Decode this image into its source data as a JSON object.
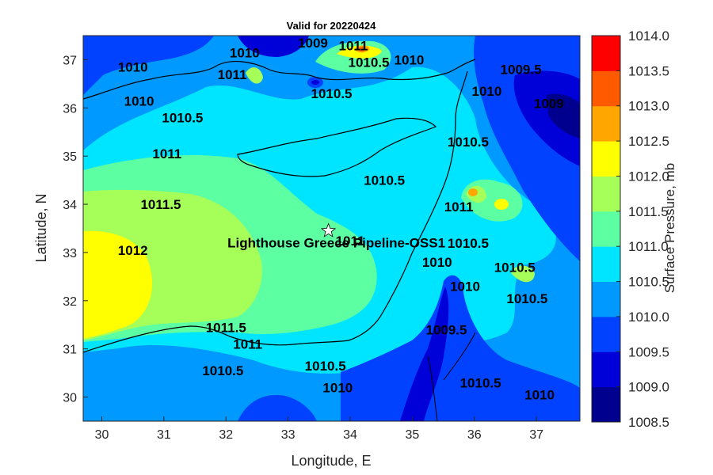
{
  "title": "Valid for 20220424",
  "xlabel": "Longitude, E",
  "ylabel": "Latitude, N",
  "colorbar_label": "Surface Pressure, mb",
  "site_label": "Lighthouse Greece Pipeline-OSS1",
  "colors": {
    "levels": [
      "#00008f",
      "#0000d8",
      "#0042ff",
      "#0099ff",
      "#00e5ff",
      "#5cffa2",
      "#a6ff59",
      "#ffff00",
      "#ffa600",
      "#ff5a00",
      "#ff0000"
    ]
  },
  "chart_data": {
    "type": "heatmap",
    "title": "Valid for 20220424",
    "xlabel": "Longitude, E",
    "ylabel": "Latitude, N",
    "xlim": [
      29.7,
      37.7
    ],
    "ylim": [
      29.5,
      37.5
    ],
    "xticks": [
      "30",
      "31",
      "32",
      "33",
      "34",
      "35",
      "36",
      "37"
    ],
    "yticks": [
      "30",
      "31",
      "32",
      "33",
      "34",
      "35",
      "36",
      "37"
    ],
    "colorbar": {
      "label": "Surface Pressure, mb",
      "range": [
        1008.5,
        1014.0
      ],
      "ticks": [
        "1014.0",
        "1013.5",
        "1013.0",
        "1012.5",
        "1012.0",
        "1011.5",
        "1011.0",
        "1010.5",
        "1010.0",
        "1009.5",
        "1009.0",
        "1008.5"
      ]
    },
    "contour_labels": [
      {
        "text": "1009",
        "lon": 33.4,
        "lat": 37.25
      },
      {
        "text": "1010",
        "lon": 32.3,
        "lat": 37.05
      },
      {
        "text": "1011",
        "lon": 32.1,
        "lat": 36.6
      },
      {
        "text": "1011",
        "lon": 34.05,
        "lat": 37.2
      },
      {
        "text": "1010.5",
        "lon": 34.3,
        "lat": 36.85
      },
      {
        "text": "1010",
        "lon": 34.95,
        "lat": 36.9
      },
      {
        "text": "1010.5",
        "lon": 33.7,
        "lat": 36.2
      },
      {
        "text": "1010",
        "lon": 30.5,
        "lat": 36.75
      },
      {
        "text": "1010",
        "lon": 30.6,
        "lat": 36.05
      },
      {
        "text": "1010.5",
        "lon": 31.3,
        "lat": 35.7
      },
      {
        "text": "1011",
        "lon": 31.05,
        "lat": 34.95
      },
      {
        "text": "1011.5",
        "lon": 30.95,
        "lat": 33.9
      },
      {
        "text": "1012",
        "lon": 30.5,
        "lat": 32.95
      },
      {
        "text": "1010.5",
        "lon": 34.55,
        "lat": 34.4
      },
      {
        "text": "1011",
        "lon": 34.0,
        "lat": 33.15
      },
      {
        "text": "1010.5",
        "lon": 35.9,
        "lat": 35.2
      },
      {
        "text": "1010",
        "lon": 36.2,
        "lat": 36.25
      },
      {
        "text": "1009.5",
        "lon": 36.75,
        "lat": 36.7
      },
      {
        "text": "1009",
        "lon": 37.2,
        "lat": 36.0
      },
      {
        "text": "1011",
        "lon": 35.75,
        "lat": 33.85
      },
      {
        "text": "1010.5",
        "lon": 35.9,
        "lat": 33.1
      },
      {
        "text": "1010",
        "lon": 35.4,
        "lat": 32.7
      },
      {
        "text": "1010",
        "lon": 35.85,
        "lat": 32.2
      },
      {
        "text": "1010.5",
        "lon": 36.65,
        "lat": 32.6
      },
      {
        "text": "1010.5",
        "lon": 36.85,
        "lat": 31.95
      },
      {
        "text": "1009.5",
        "lon": 35.55,
        "lat": 31.3
      },
      {
        "text": "1010.5",
        "lon": 36.1,
        "lat": 30.2
      },
      {
        "text": "1010",
        "lon": 37.05,
        "lat": 29.95
      },
      {
        "text": "1010.5",
        "lon": 33.6,
        "lat": 30.55
      },
      {
        "text": "1010",
        "lon": 33.8,
        "lat": 30.1
      },
      {
        "text": "1011.5",
        "lon": 32.0,
        "lat": 31.35
      },
      {
        "text": "1011",
        "lon": 32.35,
        "lat": 31.0
      },
      {
        "text": "1010.5",
        "lon": 31.95,
        "lat": 30.45
      }
    ],
    "site": {
      "name": "Lighthouse Greece Pipeline-OSS1",
      "lon": 33.65,
      "lat": 33.45
    },
    "grid": false
  }
}
